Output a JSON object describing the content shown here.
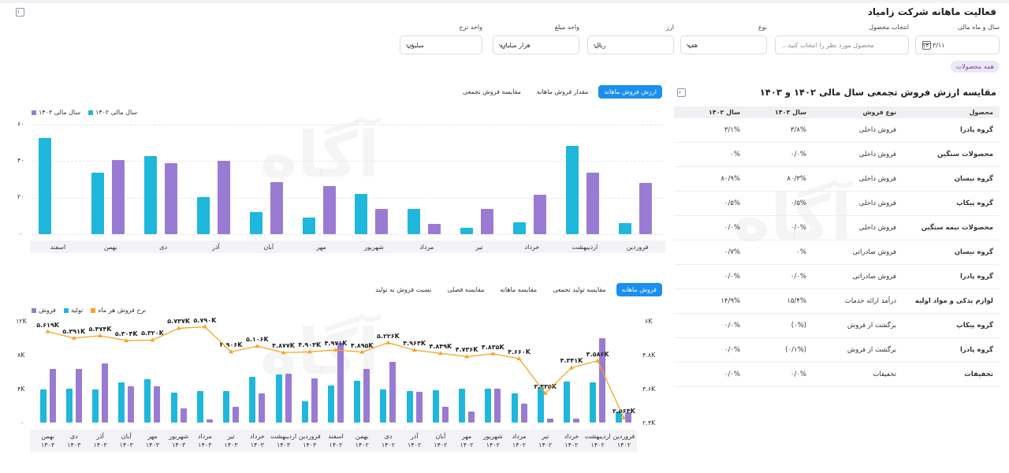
{
  "title": "فعالیت ماهانه شرکت زامیاد",
  "filters": {
    "period_label": "سال و ماه مالی",
    "period_value": "۱۴۰۳/۱۱",
    "product_label": "انتخاب محصول",
    "product_placeholder": "محصول مورد نظر را انتخاب کنید...",
    "type_label": "نوع",
    "type_value": "همه",
    "currency_label": "ارز",
    "currency_value": "ریال",
    "amount_unit_label": "واحد مبلغ",
    "amount_unit_value": "هزار میلیارد",
    "rate_unit_label": "واحد نرخ",
    "rate_unit_value": "میلیون",
    "chip": "همه محصولات"
  },
  "chart1": {
    "tabs": [
      "ارزش فروش ماهانه",
      "مقدار فروش ماهانه",
      "مقایسه فروش تجمعی"
    ],
    "active_tab": 0,
    "legend": [
      "سال مالی ۱۴۰۳",
      "سال مالی ۱۴۰۲"
    ],
    "yticks": [
      "۶۰",
      "۴۰",
      "۲۰",
      "۰"
    ]
  },
  "chart2": {
    "tabs": [
      "فروش ماهانه",
      "مقایسه تولید تجمعی",
      "مقایسه ماهانه",
      "مقایسه فصلی",
      "نسبت فروش به تولید"
    ],
    "active_tab": 0,
    "legend": [
      "فروش",
      "تولید",
      "نرخ فروش هر ماه"
    ],
    "yticks_left": [
      "۱۲K",
      "۸K",
      "۴K",
      "۰"
    ],
    "yticks_right": [
      "۶K",
      "۴.۸K",
      "۳.۶K",
      "۲.۴K"
    ]
  },
  "colors": {
    "accent": "#1a8ff0",
    "cyan": "#1fb7dc",
    "purple": "#9a7bd3",
    "line": "#f5a623"
  },
  "chart_data": [
    {
      "type": "bar",
      "title": "",
      "categories": [
        "فروردین",
        "اردیبهشت",
        "خرداد",
        "تیر",
        "مرداد",
        "شهریور",
        "مهر",
        "آبان",
        "آذر",
        "دی",
        "بهمن",
        "اسفند"
      ],
      "ylim": [
        0,
        60
      ],
      "series": [
        {
          "name": "سال مالی ۱۴۰۳",
          "values": [
            28,
            33.5,
            21.5,
            13.8,
            5.5,
            13.8,
            26.5,
            28.7,
            40,
            39,
            40.5,
            0
          ]
        },
        {
          "name": "سال مالی ۱۴۰۲",
          "values": [
            6,
            48.5,
            6.5,
            3.5,
            13.8,
            21.8,
            9,
            12,
            20.5,
            42.7,
            33.5,
            52.7
          ]
        }
      ]
    },
    {
      "type": "bar",
      "title": "",
      "categories": [
        "فروردین ۱۴۰۲",
        "اردیبهشت ۱۴۰۲",
        "خرداد ۱۴۰۲",
        "تیر ۱۴۰۲",
        "مرداد ۱۴۰۲",
        "شهریور ۱۴۰۲",
        "مهر ۱۴۰۲",
        "آبان ۱۴۰۲",
        "آذر ۱۴۰۲",
        "دی ۱۴۰۲",
        "بهمن ۱۴۰۲",
        "اسفند ۱۴۰۲",
        "فروردین ۱۴۰۳",
        "اردیبهشت ۱۴۰۳",
        "خرداد ۱۴۰۳",
        "تیر ۱۴۰۳",
        "مرداد ۱۴۰۳",
        "شهریور ۱۴۰۳",
        "مهر ۱۴۰۳",
        "آبان ۱۴۰۳",
        "آذر ۱۴۰۳",
        "دی ۱۴۰۳",
        "بهمن ۱۴۰۳"
      ],
      "ylim": [
        0,
        12000
      ],
      "y2lim": [
        2400,
        6000
      ],
      "series": [
        {
          "name": "فروش",
          "values": [
            1200,
            10000,
            500,
            500,
            2200,
            4000,
            1300,
            1900,
            3600,
            7200,
            6300,
            9400,
            5200,
            5800,
            3400,
            1900,
            400,
            1700,
            4300,
            4300,
            7000,
            6300,
            6300
          ]
        },
        {
          "name": "تولید",
          "values": [
            1300,
            4700,
            4800,
            4200,
            3400,
            4000,
            4000,
            3800,
            3700,
            3900,
            4900,
            4400,
            2500,
            5700,
            5400,
            3700,
            3700,
            3500,
            5100,
            4700,
            3900,
            4000,
            3900
          ]
        },
        {
          "name": "نرخ فروش هر ماه",
          "type": "line",
          "values": [
            2564,
            4586,
            4341,
            3435,
            4660,
            4835,
            4736,
            4849,
            4964,
            5226,
            4895,
            4971,
            4903,
            4877,
            5106,
            4906,
            5790,
            5737,
            5320,
            5304,
            5474,
            5391,
            5619
          ],
          "labels": [
            "۲.۵۶۴K",
            "۴.۵۸۶K",
            "۴.۳۴۱K",
            "۳.۴۳۵K",
            "۴.۶۶۰K",
            "۴.۸۳۵K",
            "۴.۷۳۶K",
            "۴.۸۴۹K",
            "۴.۹۶۴K",
            "۵.۲۲۶K",
            "۴.۸۹۵K",
            "۴.۹۷۱K",
            "۴.۹۰۳K",
            "۴.۸۷۷K",
            "۵.۱۰۶K",
            "۴.۹۰۶K",
            "۵.۷۹۰K",
            "۵.۷۳۷K",
            "۵.۳۲۰K",
            "۵.۳۰۴K",
            "۵.۴۷۴K",
            "۵.۳۹۱K",
            "۵.۶۱۹K"
          ]
        }
      ]
    }
  ],
  "table": {
    "title": "مقایسه ارزش فروش تجمعی سال مالی ۱۴۰۲ و ۱۴۰۳",
    "headers": [
      "محصول",
      "نوع فروش",
      "سال ۱۴۰۳",
      "سال ۱۴۰۲"
    ],
    "rows": [
      [
        "گروه پادرا",
        "فروش داخلی",
        "۳/۸%",
        "۳/۱%"
      ],
      [
        "محصولات سنگین",
        "فروش داخلی",
        "۰/۰%",
        "۰%"
      ],
      [
        "گروه نیسان",
        "فروش داخلی",
        "۸۰/۳%",
        "۸۰/۹%"
      ],
      [
        "گروه پیکاپ",
        "فروش داخلی",
        "۰/۵%",
        "۰/۵%"
      ],
      [
        "محصولات نیمه سنگین",
        "فروش داخلی",
        "۰/۰%",
        "۰/۰%"
      ],
      [
        "گروه نیسان",
        "فروش صادراتی",
        "۰%",
        "۰/۷%"
      ],
      [
        "گروه پادرا",
        "فروش صادراتی",
        "۰/۰%",
        "۰/۰%"
      ],
      [
        "لوازم یدکی و مواد اولیه",
        "درآمد ارائه خدمات",
        "۱۵/۴%",
        "۱۴/۹%"
      ],
      [
        "گروه پیکاپ",
        "برگشت از فروش",
        "(۰%)",
        "۰/۰%"
      ],
      [
        "گروه پادرا",
        "برگشت از فروش",
        "(۰/۱%)",
        "۰/۰%"
      ],
      [
        "تخفیفات",
        "تخفیفات",
        "۰/۰%",
        "۰/۰%"
      ]
    ]
  }
}
